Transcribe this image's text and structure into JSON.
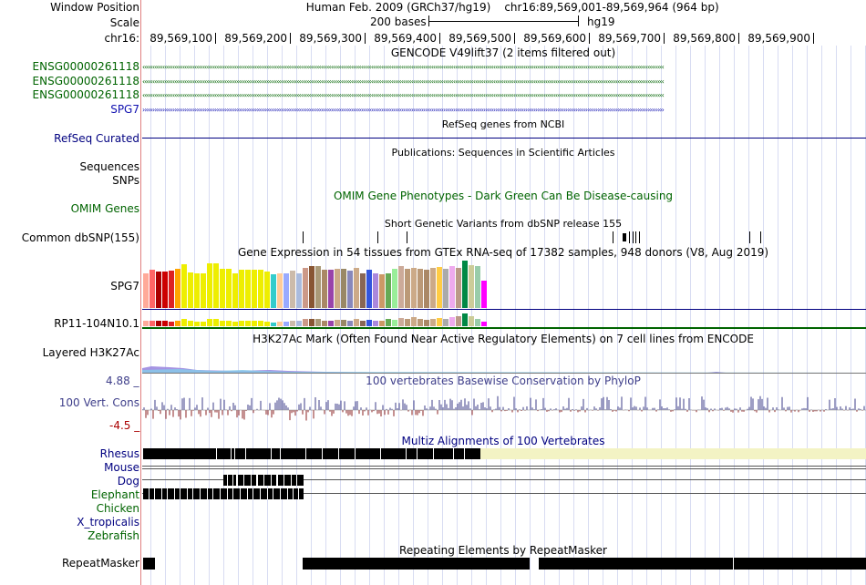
{
  "header": {
    "window_position_label": "Window Position",
    "assembly": "Human Feb. 2009 (GRCh37/hg19)",
    "position": "chr16:89,569,001-89,569,964 (964 bp)",
    "scale_label": "Scale",
    "scale_text": "200 bases",
    "scale_db": "hg19",
    "chrom_label": "chr16:",
    "ruler_ticks": [
      "89,569,100",
      "89,569,200",
      "89,569,300",
      "89,569,400",
      "89,569,500",
      "89,569,600",
      "89,569,700",
      "89,569,800",
      "89,569,900"
    ]
  },
  "gencode": {
    "title": "GENCODE V49lift37 (2 items filtered out)",
    "rows": [
      {
        "label": "ENSG00000261118",
        "strand": "minus",
        "color": "#006400"
      },
      {
        "label": "ENSG00000261118",
        "strand": "minus",
        "color": "#006400"
      },
      {
        "label": "ENSG00000261118",
        "strand": "minus",
        "color": "#006400"
      },
      {
        "label": "SPG7",
        "strand": "plus",
        "color": "#1010b0"
      }
    ]
  },
  "refseq": {
    "title": "RefSeq genes from NCBI",
    "label": "RefSeq Curated"
  },
  "publications": {
    "title": "Publications: Sequences in Scientific Articles",
    "labels": [
      "Sequences",
      "SNPs"
    ]
  },
  "omim": {
    "title": "OMIM Gene Phenotypes - Dark Green Can Be Disease-causing",
    "label": "OMIM Genes"
  },
  "dbsnp": {
    "title": "Short Genetic Variants from dbSNP release 155",
    "label": "Common dbSNP(155)"
  },
  "gtex": {
    "title": "Gene Expression in 54 tissues from GTEx RNA-seq of 17382 samples, 948 donors (V8, Aug 2019)",
    "genes": [
      "SPG7",
      "RP11-104N10.1"
    ],
    "tissue_colors": [
      "#FFAA99",
      "#FF6666",
      "#AA0000",
      "#CC0000",
      "#DD2222",
      "#FFA500",
      "#EEEE00",
      "#EEEE00",
      "#EEEE00",
      "#EEEE00",
      "#EEEE00",
      "#EEEE00",
      "#EEEE00",
      "#EEEE00",
      "#EEEE00",
      "#EEEE00",
      "#EEEE00",
      "#EEEE00",
      "#EEEE00",
      "#EEEE00",
      "#33CCCC",
      "#FFCC99",
      "#99AAFF",
      "#CCBBAA",
      "#AABBDD",
      "#CC9988",
      "#885533",
      "#AA9977",
      "#AA8866",
      "#9944AA",
      "#CCAA88",
      "#998866",
      "#8888BB",
      "#CCAA88",
      "#886655",
      "#3355DD",
      "#AA88DD",
      "#CC9966",
      "#66AA55",
      "#99EE99",
      "#CCAA99",
      "#BB9977",
      "#CCAA88",
      "#BB9977",
      "#AA8866",
      "#CCAA88",
      "#FFCC44",
      "#AAAAAA",
      "#EEAAEE",
      "#BB9988",
      "#008844",
      "#CCCC99",
      "#99CCAA",
      "#FF00FF"
    ],
    "spg7_values": [
      0.74,
      0.8,
      0.76,
      0.76,
      0.78,
      0.82,
      0.92,
      0.75,
      0.74,
      0.74,
      0.95,
      0.95,
      0.82,
      0.82,
      0.74,
      0.8,
      0.8,
      0.8,
      0.8,
      0.76,
      0.72,
      0.74,
      0.74,
      0.78,
      0.74,
      0.85,
      0.88,
      0.88,
      0.8,
      0.8,
      0.82,
      0.82,
      0.78,
      0.85,
      0.74,
      0.8,
      0.74,
      0.72,
      0.74,
      0.82,
      0.88,
      0.82,
      0.85,
      0.82,
      0.8,
      0.85,
      0.86,
      0.82,
      0.88,
      0.85,
      1.0,
      0.9,
      0.88,
      0.58
    ],
    "rp11_values": [
      0.4,
      0.45,
      0.45,
      0.4,
      0.35,
      0.4,
      0.55,
      0.4,
      0.35,
      0.35,
      0.6,
      0.55,
      0.45,
      0.45,
      0.35,
      0.4,
      0.45,
      0.45,
      0.4,
      0.35,
      0.3,
      0.35,
      0.35,
      0.45,
      0.45,
      0.55,
      0.6,
      0.55,
      0.45,
      0.4,
      0.5,
      0.5,
      0.45,
      0.55,
      0.45,
      0.5,
      0.45,
      0.45,
      0.55,
      0.5,
      0.65,
      0.55,
      0.7,
      0.55,
      0.5,
      0.6,
      0.65,
      0.55,
      0.7,
      0.75,
      1.0,
      0.75,
      0.6,
      0.35
    ]
  },
  "h3k27ac": {
    "title": "H3K27Ac Mark (Often Found Near Active Regulatory Elements) on 7 cell lines from ENCODE",
    "label": "Layered H3K27Ac"
  },
  "phylop": {
    "title": "100 vertebrates Basewise Conservation by PhyloP",
    "label": "100 Vert. Cons",
    "max": "4.88 _",
    "min": "-4.5 _",
    "color": "#3e3e8a"
  },
  "multiz": {
    "title": "Multiz Alignments of 100 Vertebrates",
    "species": [
      "Rhesus",
      "Mouse",
      "Dog",
      "Elephant",
      "Chicken",
      "X_tropicalis",
      "Zebrafish"
    ]
  },
  "repeatmasker": {
    "title": "Repeating Elements by RepeatMasker",
    "label": "RepeatMasker"
  }
}
